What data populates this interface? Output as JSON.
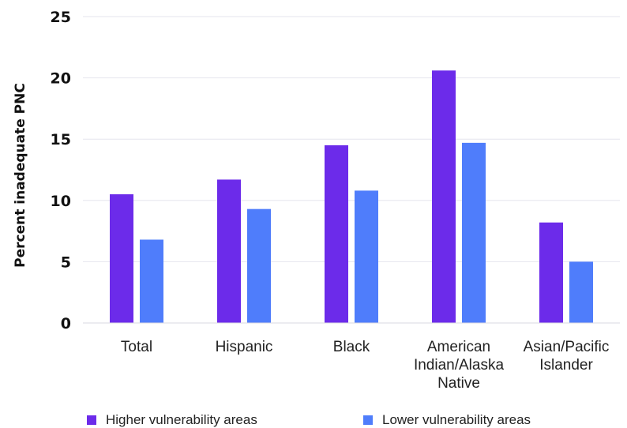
{
  "chart_data": {
    "type": "bar",
    "ylabel": "Percent inadequate PNC",
    "xlabel": "",
    "ylim": [
      0,
      25
    ],
    "yticks": [
      "0",
      "5",
      "10",
      "15",
      "20",
      "25"
    ],
    "grid": true,
    "legend_position": "bottom",
    "categories": [
      [
        "Total"
      ],
      [
        "Hispanic"
      ],
      [
        "Black"
      ],
      [
        "American",
        "Indian/Alaska",
        "Native"
      ],
      [
        "Asian/Pacific",
        "Islander"
      ]
    ],
    "series": [
      {
        "name": "Higher vulnerability areas",
        "color": "#6c2bea",
        "values": [
          10.5,
          11.7,
          14.5,
          20.6,
          8.2
        ]
      },
      {
        "name": "Lower vulnerability areas",
        "color": "#4f7dfb",
        "values": [
          6.8,
          9.3,
          10.8,
          14.7,
          5.0
        ]
      }
    ]
  }
}
